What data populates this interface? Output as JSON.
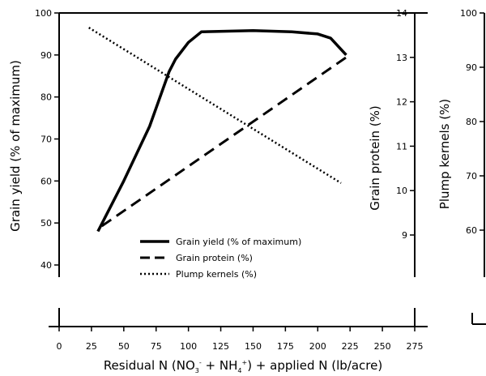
{
  "chart_data": {
    "type": "line",
    "xlabel": {
      "main": "Residual N (NO",
      "sub1": "3",
      "sup1": "-",
      "mid": " + NH",
      "sub2": "4",
      "sup2": "+",
      "end": ") + applied N (lb/acre)"
    },
    "x_ticks": [
      "0",
      "25",
      "50",
      "75",
      "100",
      "125",
      "150",
      "175",
      "200",
      "225",
      "250",
      "275"
    ],
    "xlim": [
      0,
      275
    ],
    "axes": [
      {
        "id": "yield",
        "label": "Grain yield (% of maximum)",
        "ylim": [
          40,
          100
        ],
        "ticks": [
          "40",
          "50",
          "60",
          "70",
          "80",
          "90",
          "100"
        ]
      },
      {
        "id": "protein",
        "label": "Grain protein (%)",
        "ylim": [
          9,
          14
        ],
        "ticks": [
          "9",
          "10",
          "11",
          "12",
          "13",
          "14"
        ]
      },
      {
        "id": "plump",
        "label": "Plump kernels (%)",
        "ylim": [
          60,
          100
        ],
        "ticks": [
          "60",
          "70",
          "80",
          "90",
          "100"
        ]
      }
    ],
    "series": [
      {
        "name": "Grain yield (% of maximum)",
        "axis": "yield",
        "style": "solid",
        "x": [
          30,
          50,
          70,
          85,
          90,
          100,
          110,
          150,
          180,
          200,
          210,
          222
        ],
        "y": [
          48,
          60,
          73,
          86,
          89,
          93,
          95.5,
          95.8,
          95.5,
          95,
          94,
          90
        ]
      },
      {
        "name": "Grain protein (%)",
        "axis": "protein",
        "style": "dashed",
        "x": [
          33,
          222
        ],
        "y": [
          9.2,
          13.0
        ]
      },
      {
        "name": "Plump kernels (%)",
        "axis": "yield",
        "style": "dotted",
        "x": [
          23,
          218
        ],
        "y": [
          96.5,
          59.5
        ]
      }
    ],
    "legend": {
      "position": "lower-center"
    },
    "grid": false
  }
}
